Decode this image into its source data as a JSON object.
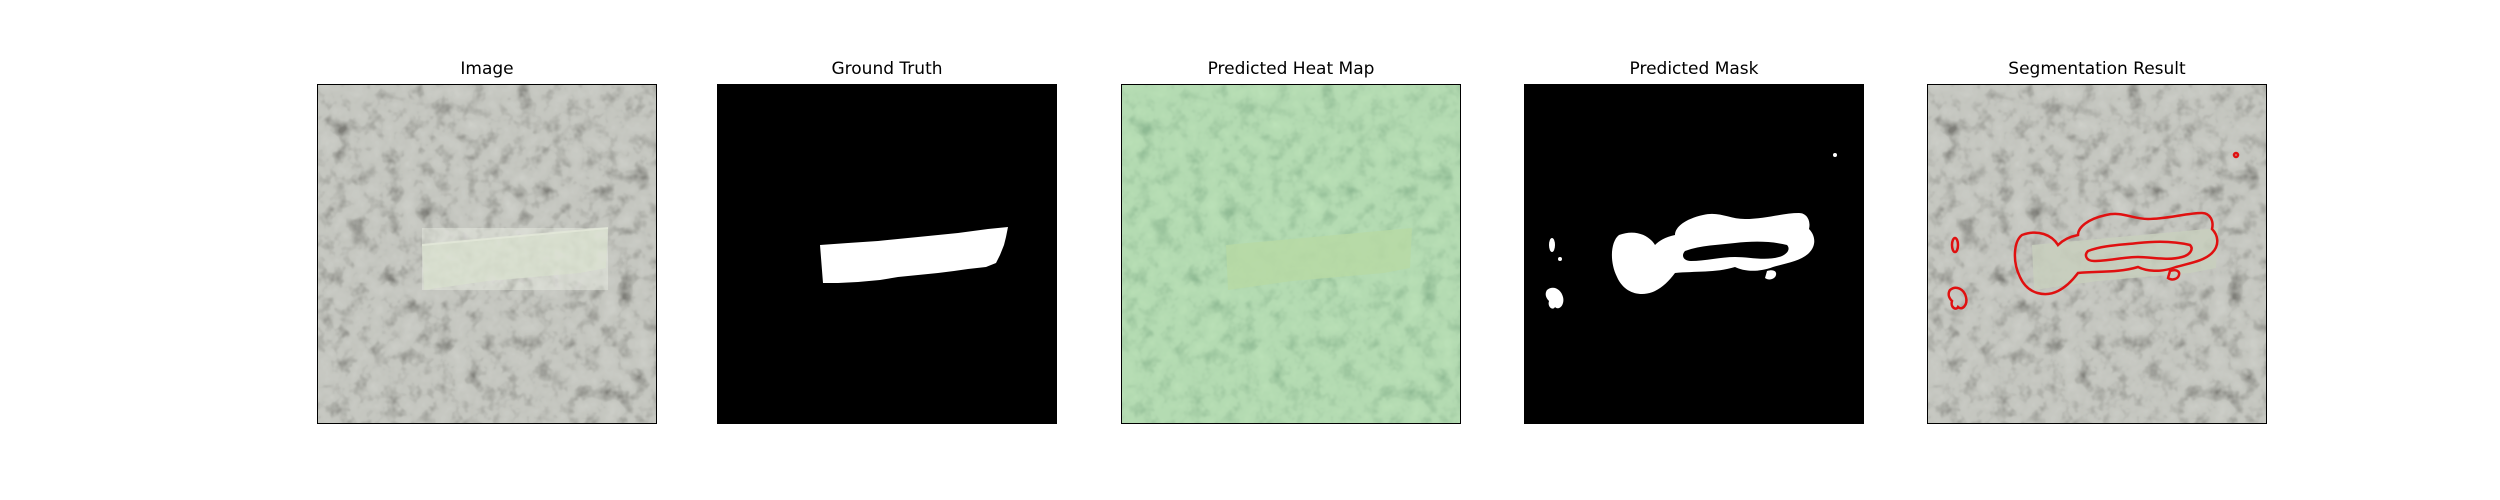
{
  "panels": [
    {
      "title": "Image",
      "content": "original-image"
    },
    {
      "title": "Ground Truth",
      "content": "ground-truth-mask"
    },
    {
      "title": "Predicted Heat Map",
      "content": "predicted-heat-map"
    },
    {
      "title": "Predicted Mask",
      "content": "predicted-mask"
    },
    {
      "title": "Segmentation Result",
      "content": "segmentation-result"
    }
  ],
  "colors": {
    "background": "#ffffff",
    "texture_light": "#8e918a",
    "texture_dark": "#2f302d",
    "tape_region": "#c9cfbf",
    "mask_foreground": "#ffffff",
    "mask_background": "#000000",
    "heatmap_tint": "#6fbf6a",
    "contour": "#e01010"
  }
}
